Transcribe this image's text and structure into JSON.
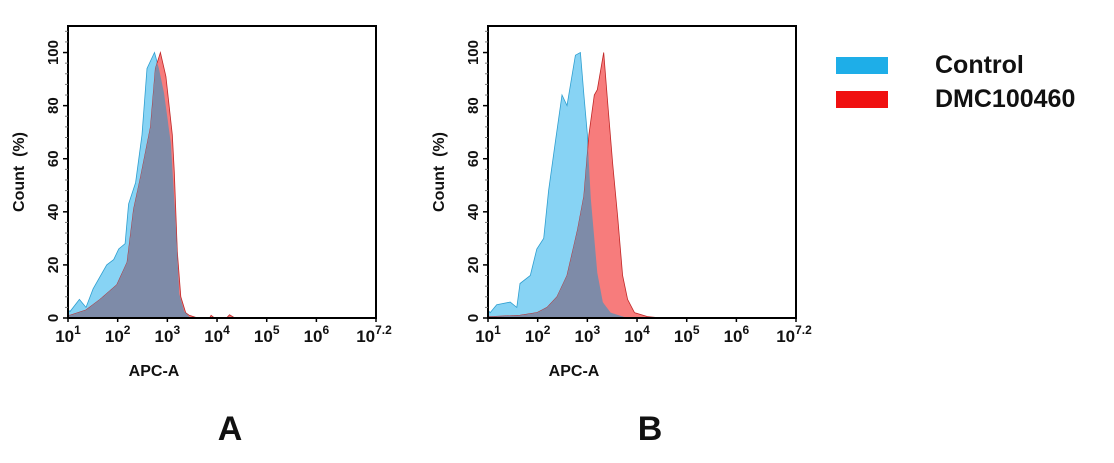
{
  "legend": {
    "items": [
      {
        "label": "Control",
        "color": "#1eaee8"
      },
      {
        "label": "DMC100460",
        "color": "#f01010"
      }
    ]
  },
  "colors": {
    "control_fill": "#87d3f4",
    "control_edge": "#2f9fd0",
    "dmc_fill": "#f77c7c",
    "dmc_edge": "#c02626",
    "overlap_fill": "#7e8ba8"
  },
  "chart_data": [
    {
      "type": "area",
      "panel_label": "A",
      "xlabel": "APC-A",
      "ylabel": "Count  (%)",
      "x_scale": "log",
      "xlim": [
        10,
        15848932
      ],
      "ylim": [
        0,
        110
      ],
      "x_tick_base": "10",
      "x_tick_exponents": [
        "1",
        "2",
        "3",
        "4",
        "5",
        "6",
        "7.2"
      ],
      "y_ticks": [
        0,
        20,
        40,
        60,
        80,
        100
      ],
      "grid": false,
      "series": [
        {
          "name": "Control",
          "x": [
            10,
            11,
            17,
            23,
            32,
            60,
            83,
            105,
            141,
            166,
            229,
            309,
            389,
            550,
            676,
            851,
            1175,
            1479,
            1738,
            2188,
            2951
          ],
          "y": [
            3,
            2.5,
            7,
            4,
            11,
            20,
            22,
            26,
            28,
            43,
            51,
            69,
            94,
            100,
            94,
            85,
            66,
            35,
            9,
            2.5,
            0
          ]
        },
        {
          "name": "DMC100460",
          "x": [
            10,
            11,
            23,
            44,
            96,
            155,
            209,
            288,
            457,
            575,
            724,
            933,
            1259,
            1380,
            1585,
            1862,
            2344,
            2754,
            4074,
            7079,
            7586,
            8913,
            15488,
            17783,
            22909
          ],
          "y": [
            1,
            1,
            3,
            7,
            12.5,
            21,
            41,
            53,
            72,
            94,
            100,
            91,
            69,
            55,
            25,
            8,
            2,
            1,
            0,
            0,
            1,
            0,
            0,
            1.2,
            0
          ]
        }
      ]
    },
    {
      "type": "area",
      "panel_label": "B",
      "xlabel": "APC-A",
      "ylabel": "Count  (%)",
      "x_scale": "log",
      "xlim": [
        10,
        15848932
      ],
      "ylim": [
        0,
        110
      ],
      "x_tick_base": "10",
      "x_tick_exponents": [
        "1",
        "2",
        "3",
        "4",
        "5",
        "6",
        "7.2"
      ],
      "y_ticks": [
        0,
        20,
        40,
        60,
        80,
        100
      ],
      "grid": false,
      "series": [
        {
          "name": "Control",
          "x": [
            10,
            11,
            15,
            28,
            38,
            44,
            71,
            96,
            132,
            166,
            229,
            309,
            389,
            575,
            724,
            851,
            1000,
            1175,
            1585,
            2042,
            2951,
            6457
          ],
          "y": [
            3,
            2,
            5,
            6,
            4,
            13,
            16,
            26,
            30,
            48,
            67,
            84,
            80,
            99,
            100,
            84,
            69,
            45,
            17,
            6,
            2,
            0
          ]
        },
        {
          "name": "DMC100460",
          "x": [
            10,
            11,
            44,
            96,
            155,
            245,
            389,
            631,
            851,
            1072,
            1380,
            1585,
            2138,
            2570,
            3236,
            4074,
            5129,
            6457,
            8913,
            16596,
            30903
          ],
          "y": [
            0.5,
            0.5,
            1,
            2,
            4,
            8,
            16,
            33,
            46,
            69,
            84,
            86,
            100,
            81,
            58,
            38,
            16,
            7,
            2,
            0.5,
            0
          ]
        }
      ]
    }
  ]
}
